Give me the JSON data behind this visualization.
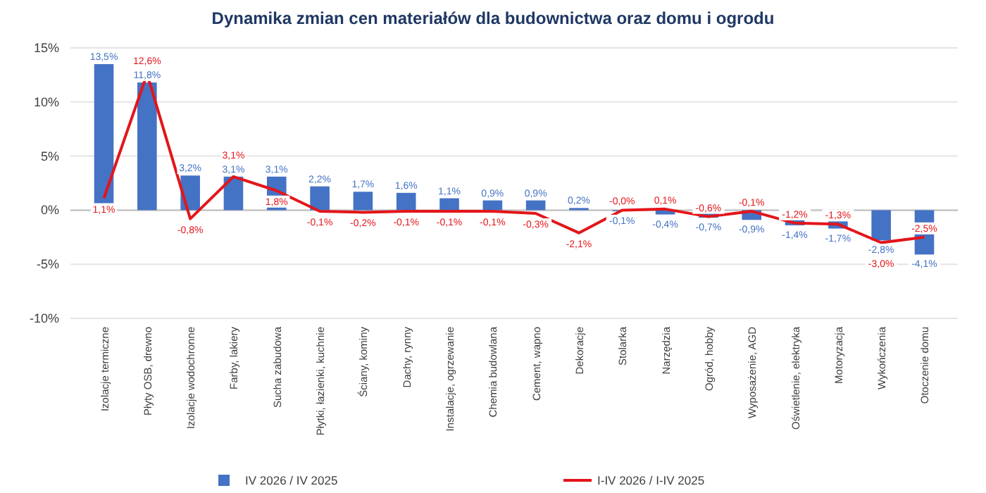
{
  "chart_data": {
    "type": "bar",
    "title": "Dynamika zmian cen materiałów dla budownictwa oraz domu i ogrodu",
    "categories": [
      "Izolacje termiczne",
      "Płyty OSB, drewno",
      "Izolacje wodochronne",
      "Farby, lakiery",
      "Sucha zabudowa",
      "Płytki, łazienki, kuchnie",
      "Ściany, kominy",
      "Dachy, rynny",
      "Instalacje, ogrzewanie",
      "Chemia budowlana",
      "Cement, wapno",
      "Dekoracje",
      "Stolarka",
      "Narzędzia",
      "Ogród, hobby",
      "Wyposażenie, AGD",
      "Oświetlenie, elektryka",
      "Motoryzacja",
      "Wykończenia",
      "Otoczenie domu"
    ],
    "series": [
      {
        "name": "IV 2026 / IV 2025",
        "color": "#4472c4",
        "values": [
          13.5,
          11.8,
          3.2,
          3.1,
          3.1,
          2.2,
          1.7,
          1.6,
          1.1,
          0.9,
          0.9,
          0.2,
          -0.1,
          -0.4,
          -0.7,
          -0.9,
          -1.4,
          -1.7,
          -2.8,
          -4.1
        ],
        "value_labels": [
          "13,5%",
          "11,8%",
          "3,2%",
          "3,1%",
          "3,1%",
          "2,2%",
          "1,7%",
          "1,6%",
          "1,1%",
          "0,9%",
          "0,9%",
          "0,2%",
          "-0,1%",
          "-0,4%",
          "-0,7%",
          "-0,9%",
          "-1,4%",
          "-1,7%",
          "-2,8%",
          "-4,1%"
        ]
      },
      {
        "name": "I-IV 2026 / I-IV 2025",
        "type": "line",
        "color": "#e3151a",
        "values": [
          1.1,
          12.6,
          -0.8,
          3.1,
          1.8,
          -0.1,
          -0.2,
          -0.1,
          -0.1,
          -0.1,
          -0.3,
          -2.1,
          -0.0,
          0.1,
          -0.6,
          -0.1,
          -1.2,
          -1.3,
          -3.0,
          -2.5
        ],
        "value_labels": [
          "1,1%",
          "12,6%",
          "-0,8%",
          "3,1%",
          "1,8%",
          "-0,1%",
          "-0,2%",
          "-0,1%",
          "-0,1%",
          "-0,1%",
          "-0,3%",
          "-2,1%",
          "-0,0%",
          "0,1%",
          "-0,6%",
          "-0,1%",
          "-1,2%",
          "-1,3%",
          "-3,0%",
          "-2,5%"
        ]
      }
    ],
    "ylim": [
      -10,
      15
    ],
    "yticks": [
      {
        "value": -10,
        "label": "-10%"
      },
      {
        "value": -5,
        "label": "-5%"
      },
      {
        "value": 0,
        "label": "0%"
      },
      {
        "value": 5,
        "label": "5%"
      },
      {
        "value": 10,
        "label": "10%"
      },
      {
        "value": 15,
        "label": "15%"
      }
    ],
    "grid": "y",
    "legend": "bottom",
    "marker": "none",
    "line_style": "solid"
  }
}
